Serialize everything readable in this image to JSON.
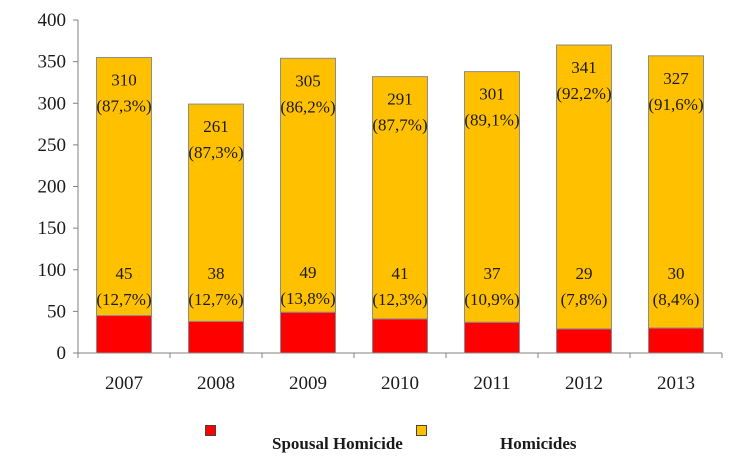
{
  "chart_data": {
    "type": "bar",
    "stacked": true,
    "title": "",
    "xlabel": "",
    "ylabel": "",
    "ylim": [
      0,
      400
    ],
    "yticks": [
      "0",
      "50",
      "100",
      "150",
      "200",
      "250",
      "300",
      "350",
      "400"
    ],
    "categories": [
      "2007",
      "2008",
      "2009",
      "2010",
      "2011",
      "2012",
      "2013"
    ],
    "grid": false,
    "legend_position": "bottom",
    "series": [
      {
        "name": "Spousal Homicide",
        "color": "#ff0000",
        "values": [
          45,
          38,
          49,
          41,
          37,
          29,
          30
        ],
        "labels": [
          [
            "45",
            "(12,7%)"
          ],
          [
            "38",
            "(12,7%)"
          ],
          [
            "49",
            "(13,8%)"
          ],
          [
            "41",
            "(12,3%)"
          ],
          [
            "37",
            "(10,9%)"
          ],
          [
            "29",
            "(7,8%)"
          ],
          [
            "30",
            "(8,4%)"
          ]
        ]
      },
      {
        "name": "Homicides",
        "color": "#ffc000",
        "values": [
          310,
          261,
          305,
          291,
          301,
          341,
          327
        ],
        "labels": [
          [
            "310",
            "(87,3%)"
          ],
          [
            "261",
            "(87,3%)"
          ],
          [
            "305",
            "(86,2%)"
          ],
          [
            "291",
            "(87,7%)"
          ],
          [
            "301",
            "(89,1%)"
          ],
          [
            "341",
            "(92,2%)"
          ],
          [
            "327",
            "(91,6%)"
          ]
        ]
      }
    ]
  }
}
